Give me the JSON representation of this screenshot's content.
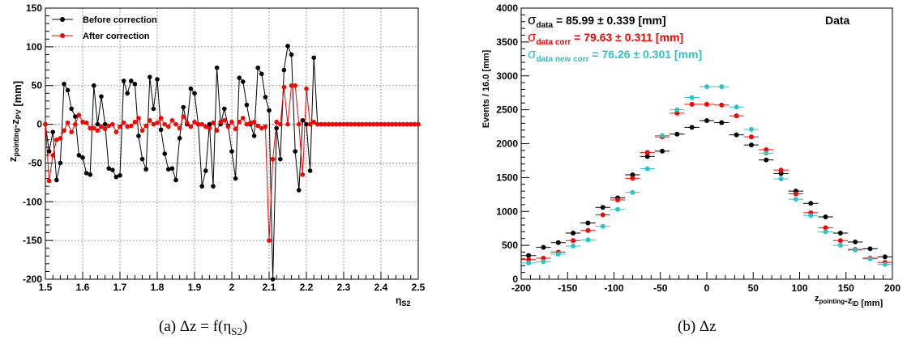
{
  "captions": {
    "left": "(a)  Δz = f(η",
    "left_sub": "S2",
    "left_end": ")",
    "right": "(b)  Δz"
  },
  "chart_data": [
    {
      "type": "line",
      "title": "",
      "xlabel_main": "η",
      "xlabel_sub": "S2",
      "ylabel_parts": [
        {
          "t": "z",
          "sub": "pointing"
        },
        {
          "t": "-z",
          "sub": "PV"
        },
        {
          "t": " [mm]",
          "sub": ""
        }
      ],
      "xlim": [
        1.5,
        2.5
      ],
      "ylim": [
        -200,
        150
      ],
      "x_ticks": [
        "1.5",
        "1.6",
        "1.7",
        "1.8",
        "1.9",
        "2",
        "2.1",
        "2.2",
        "2.3",
        "2.4",
        "2.5"
      ],
      "y_ticks": [
        "150",
        "100",
        "50",
        "0",
        "-50",
        "-100",
        "-150",
        "-200"
      ],
      "grid": true,
      "legend_position": "top-left",
      "series": [
        {
          "name": "Before correction",
          "color": "#000000",
          "x": [
            1.5,
            1.51,
            1.52,
            1.53,
            1.54,
            1.55,
            1.56,
            1.57,
            1.58,
            1.59,
            1.6,
            1.61,
            1.62,
            1.63,
            1.64,
            1.65,
            1.66,
            1.67,
            1.68,
            1.69,
            1.7,
            1.71,
            1.72,
            1.73,
            1.74,
            1.75,
            1.76,
            1.77,
            1.78,
            1.79,
            1.8,
            1.81,
            1.82,
            1.83,
            1.84,
            1.85,
            1.86,
            1.87,
            1.88,
            1.89,
            1.9,
            1.91,
            1.92,
            1.93,
            1.94,
            1.95,
            1.96,
            1.97,
            1.98,
            1.99,
            2.0,
            2.01,
            2.02,
            2.03,
            2.04,
            2.05,
            2.06,
            2.07,
            2.08,
            2.09,
            2.1,
            2.11,
            2.12,
            2.13,
            2.14,
            2.15,
            2.16,
            2.17,
            2.18,
            2.19,
            2.2,
            2.21,
            2.22,
            2.23,
            2.24,
            2.25,
            2.26,
            2.27,
            2.28,
            2.29,
            2.3,
            2.31,
            2.32,
            2.33,
            2.34,
            2.35,
            2.36,
            2.37,
            2.38,
            2.39,
            2.4,
            2.41,
            2.42,
            2.43,
            2.44,
            2.45,
            2.46,
            2.47,
            2.48,
            2.49,
            2.5
          ],
          "y": [
            0,
            -35,
            -10,
            -72,
            -50,
            52,
            44,
            20,
            10,
            -40,
            -43,
            -63,
            -65,
            50,
            0,
            36,
            0,
            -57,
            -59,
            -68,
            -66,
            56,
            40,
            56,
            52,
            -15,
            -45,
            -58,
            61,
            20,
            58,
            -7,
            -38,
            -58,
            -57,
            -72,
            -18,
            22,
            0,
            46,
            40,
            0,
            -80,
            -60,
            0,
            -80,
            73,
            0,
            20,
            -2,
            -35,
            -70,
            60,
            55,
            25,
            0,
            -15,
            73,
            65,
            35,
            18,
            -200,
            -5,
            -45,
            70,
            101,
            90,
            -35,
            -85,
            5,
            0,
            -60,
            86,
            0,
            0,
            0,
            0,
            0,
            0,
            0,
            0,
            0,
            0,
            0,
            0,
            0,
            0,
            0,
            0,
            0,
            0,
            0,
            0,
            0,
            0,
            0,
            0,
            0,
            0,
            0,
            0
          ]
        },
        {
          "name": "After correction",
          "color": "#ff0000",
          "x": [
            1.5,
            1.51,
            1.52,
            1.53,
            1.54,
            1.55,
            1.56,
            1.57,
            1.58,
            1.59,
            1.6,
            1.61,
            1.62,
            1.63,
            1.64,
            1.65,
            1.66,
            1.67,
            1.68,
            1.69,
            1.7,
            1.71,
            1.72,
            1.73,
            1.74,
            1.75,
            1.76,
            1.77,
            1.78,
            1.79,
            1.8,
            1.81,
            1.82,
            1.83,
            1.84,
            1.85,
            1.86,
            1.87,
            1.88,
            1.89,
            1.9,
            1.91,
            1.92,
            1.93,
            1.94,
            1.95,
            1.96,
            1.97,
            1.98,
            1.99,
            2.0,
            2.01,
            2.02,
            2.03,
            2.04,
            2.05,
            2.06,
            2.07,
            2.08,
            2.09,
            2.1,
            2.11,
            2.12,
            2.13,
            2.14,
            2.15,
            2.16,
            2.17,
            2.18,
            2.19,
            2.2,
            2.21,
            2.22,
            2.23,
            2.24,
            2.25,
            2.26,
            2.27,
            2.28,
            2.29,
            2.3,
            2.31,
            2.32,
            2.33,
            2.34,
            2.35,
            2.36,
            2.37,
            2.38,
            2.39,
            2.4,
            2.41,
            2.42,
            2.43,
            2.44,
            2.45,
            2.46,
            2.47,
            2.48,
            2.49,
            2.5
          ],
          "y": [
            0,
            -73,
            -40,
            -20,
            -18,
            -8,
            2,
            -10,
            0,
            12,
            3,
            2,
            -5,
            -5,
            -8,
            -3,
            -6,
            -2,
            0,
            -10,
            -3,
            2,
            -3,
            -2,
            3,
            8,
            -8,
            -2,
            5,
            0,
            2,
            8,
            0,
            -3,
            5,
            0,
            -5,
            10,
            2,
            -3,
            3,
            0,
            0,
            -3,
            -5,
            2,
            -8,
            3,
            5,
            -3,
            3,
            -6,
            3,
            8,
            0,
            2,
            3,
            -2,
            -5,
            -3,
            -150,
            -45,
            3,
            0,
            48,
            0,
            50,
            50,
            0,
            -65,
            46,
            0,
            3,
            0,
            0,
            0,
            0,
            0,
            0,
            0,
            0,
            0,
            0,
            0,
            0,
            0,
            0,
            0,
            0,
            0,
            0,
            0,
            0,
            0,
            0,
            0,
            0,
            0,
            0,
            0,
            0
          ]
        }
      ]
    },
    {
      "type": "scatter",
      "title": "",
      "ylabel": "Events / 16.0 [mm]",
      "xlabel_parts": [
        {
          "t": "z",
          "sub": "pointing"
        },
        {
          "t": "-z",
          "sub": "ID"
        },
        {
          "t": " [mm]",
          "sub": ""
        }
      ],
      "xlim": [
        -200,
        200
      ],
      "ylim": [
        0,
        4000
      ],
      "x_ticks": [
        "-200",
        "-150",
        "-100",
        "-50",
        "0",
        "50",
        "100",
        "150",
        "200"
      ],
      "y_ticks": [
        "4000",
        "3500",
        "3000",
        "2500",
        "2000",
        "1500",
        "1000",
        "500",
        "0"
      ],
      "grid": false,
      "label": "Data",
      "legend_position": "top-left",
      "bin_width": 16,
      "annotations": [
        {
          "symbol": "σ",
          "sub": "data",
          "text": " = 85.99 ± 0.339 [mm]",
          "color": "#000000"
        },
        {
          "symbol": "σ",
          "sub": "data corr",
          "text": " = 79.63 ± 0.311 [mm]",
          "color": "#ff0000"
        },
        {
          "symbol": "σ",
          "sub": "data new corr",
          "text": " = 76.26 ± 0.301 [mm]",
          "color": "#2bc4c4"
        }
      ],
      "series": [
        {
          "name": "Data",
          "color": "#000000",
          "x": [
            -192,
            -176,
            -160,
            -144,
            -128,
            -112,
            -96,
            -80,
            -64,
            -48,
            -32,
            -16,
            0,
            16,
            32,
            48,
            64,
            80,
            96,
            112,
            128,
            144,
            160,
            176,
            192
          ],
          "y": [
            350,
            470,
            540,
            680,
            830,
            1060,
            1200,
            1540,
            1810,
            1890,
            2140,
            2240,
            2340,
            2310,
            2130,
            1980,
            1760,
            1560,
            1300,
            1120,
            920,
            680,
            550,
            450,
            330
          ]
        },
        {
          "name": "Data corr",
          "color": "#ff0000",
          "x": [
            -192,
            -176,
            -160,
            -144,
            -128,
            -112,
            -96,
            -80,
            -64,
            -48,
            -32,
            -16,
            0,
            16,
            32,
            48,
            64,
            80,
            96,
            112,
            128,
            144,
            160,
            176,
            192
          ],
          "y": [
            290,
            310,
            400,
            570,
            720,
            950,
            1170,
            1490,
            1870,
            2100,
            2450,
            2580,
            2580,
            2570,
            2410,
            2100,
            1910,
            1610,
            1260,
            980,
            760,
            570,
            440,
            310,
            250
          ]
        },
        {
          "name": "Data new corr",
          "color": "#2bc4c4",
          "x": [
            -192,
            -176,
            -160,
            -144,
            -128,
            -112,
            -96,
            -80,
            -64,
            -48,
            -32,
            -16,
            0,
            16,
            32,
            48,
            64,
            80,
            96,
            112,
            128,
            144,
            160,
            176,
            192
          ],
          "y": [
            240,
            260,
            370,
            490,
            580,
            780,
            1030,
            1280,
            1630,
            2120,
            2500,
            2680,
            2840,
            2840,
            2540,
            2210,
            1860,
            1480,
            1180,
            940,
            700,
            500,
            430,
            300,
            220
          ]
        }
      ]
    }
  ]
}
